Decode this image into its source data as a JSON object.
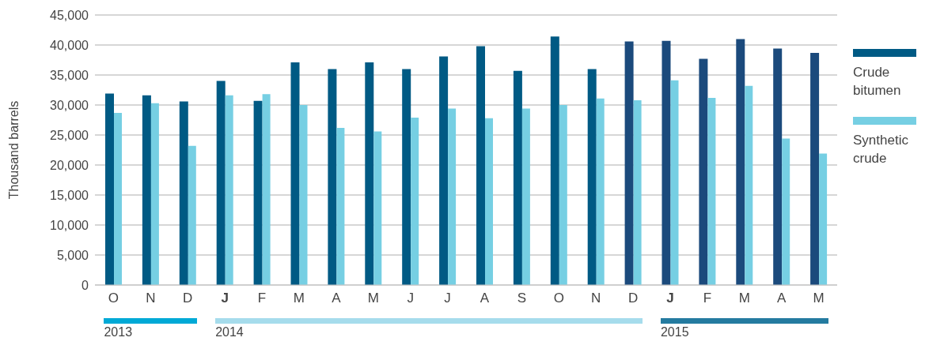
{
  "chart_data": {
    "type": "bar",
    "ylabel": "Thousand barrels",
    "categories": [
      "O",
      "N",
      "D",
      "J",
      "F",
      "M",
      "A",
      "M",
      "J",
      "J",
      "A",
      "S",
      "O",
      "N",
      "D",
      "J",
      "F",
      "M",
      "A",
      "M"
    ],
    "series": [
      {
        "name": "Crude bitumen",
        "color": "#005a84",
        "colors": [
          "#005a84",
          "#005a84",
          "#005a84",
          "#005a84",
          "#005a84",
          "#005a84",
          "#005a84",
          "#005a84",
          "#005a84",
          "#005a84",
          "#005a84",
          "#005a84",
          "#005a84",
          "#005a84",
          "#1b4a7c",
          "#1b4a7c",
          "#1b4a7c",
          "#1b4a7c",
          "#1b4a7c",
          "#1b4a7c"
        ],
        "values": [
          31900,
          31600,
          30600,
          34000,
          30700,
          37100,
          36000,
          37100,
          36000,
          38100,
          39800,
          35700,
          41400,
          36000,
          40600,
          40700,
          37700,
          41000,
          39400,
          38700
        ]
      },
      {
        "name": "Synthetic crude",
        "color": "#76cfe3",
        "values": [
          28700,
          30300,
          23200,
          31600,
          31800,
          30000,
          26200,
          25600,
          27900,
          29400,
          27800,
          29400,
          30000,
          31100,
          30800,
          34100,
          31200,
          33200,
          24400,
          21900
        ]
      }
    ],
    "ylim": [
      0,
      45000
    ],
    "yticks": [
      0,
      {
        "value": 5000,
        "label": "5,000"
      },
      {
        "value": 10000,
        "label": "10,000"
      },
      {
        "value": 15000,
        "label": "15,000"
      },
      {
        "value": 20000,
        "label": "20,000"
      },
      {
        "value": 25000,
        "label": "25,000"
      },
      {
        "value": 30000,
        "label": "30,000"
      },
      {
        "value": 35000,
        "label": "35,000"
      },
      {
        "value": 40000,
        "label": "40,000"
      },
      {
        "value": 45000,
        "label": "45,000"
      }
    ],
    "grid": "y",
    "legend": "right",
    "annotations": [
      "2013",
      "2014",
      "2015"
    ]
  }
}
